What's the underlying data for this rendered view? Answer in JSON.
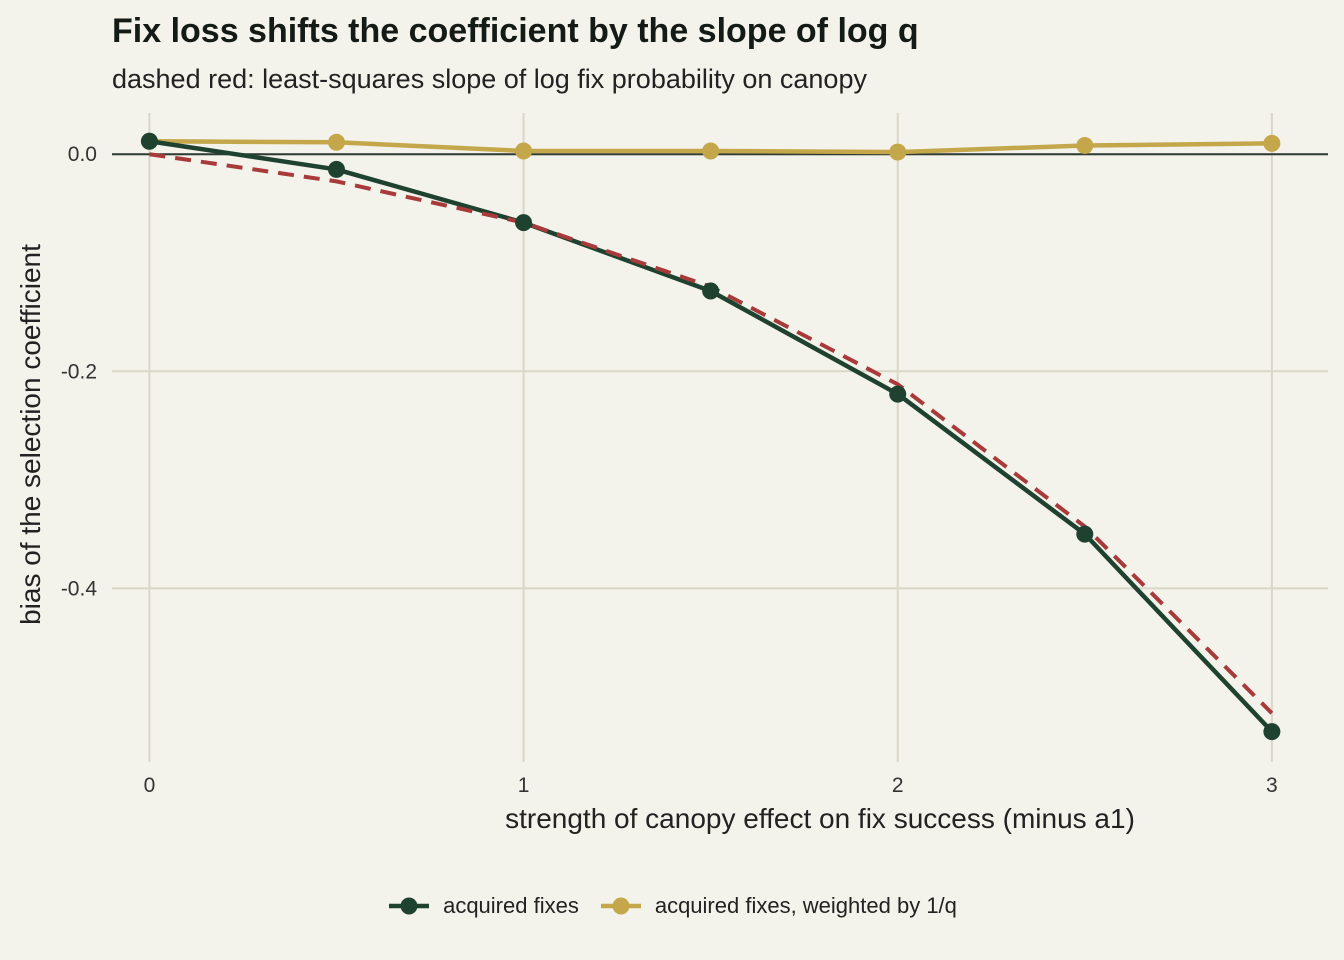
{
  "chart_data": {
    "type": "line",
    "title": "Fix loss shifts the coefficient by the slope of log q",
    "subtitle": "dashed red: least-squares slope of log fix probability on canopy",
    "xlabel": "strength of canopy effect on fix success (minus a1)",
    "ylabel": "bias of the selection coefficient",
    "xlim": [
      -0.1,
      3.15
    ],
    "ylim": [
      -0.56,
      0.038
    ],
    "x_ticks": [
      0,
      1,
      2,
      3
    ],
    "x_tick_labels": [
      "0",
      "1",
      "2",
      "3"
    ],
    "y_ticks": [
      0.0,
      -0.2,
      -0.4
    ],
    "y_tick_labels": [
      "0.0",
      "-0.2",
      "-0.4"
    ],
    "grid": true,
    "legend_position": "bottom",
    "x": [
      0,
      0.5,
      1,
      1.5,
      2,
      2.5,
      3
    ],
    "series": [
      {
        "name": "acquired fixes",
        "color": "#1f4230",
        "values": [
          0.012,
          -0.014,
          -0.063,
          -0.126,
          -0.221,
          -0.35,
          -0.532
        ]
      },
      {
        "name": "acquired fixes, weighted by 1/q",
        "color": "#c4a74a",
        "values": [
          0.012,
          0.011,
          0.003,
          0.003,
          0.002,
          0.008,
          0.01
        ]
      }
    ],
    "reference_line": {
      "color": "#a83a3a",
      "style": "dashed",
      "x": [
        0,
        0.5,
        1,
        1.5,
        2,
        2.5,
        3
      ],
      "values": [
        0.0,
        -0.025,
        -0.063,
        -0.122,
        -0.212,
        -0.343,
        -0.515
      ]
    },
    "zero_line": 0.0
  }
}
